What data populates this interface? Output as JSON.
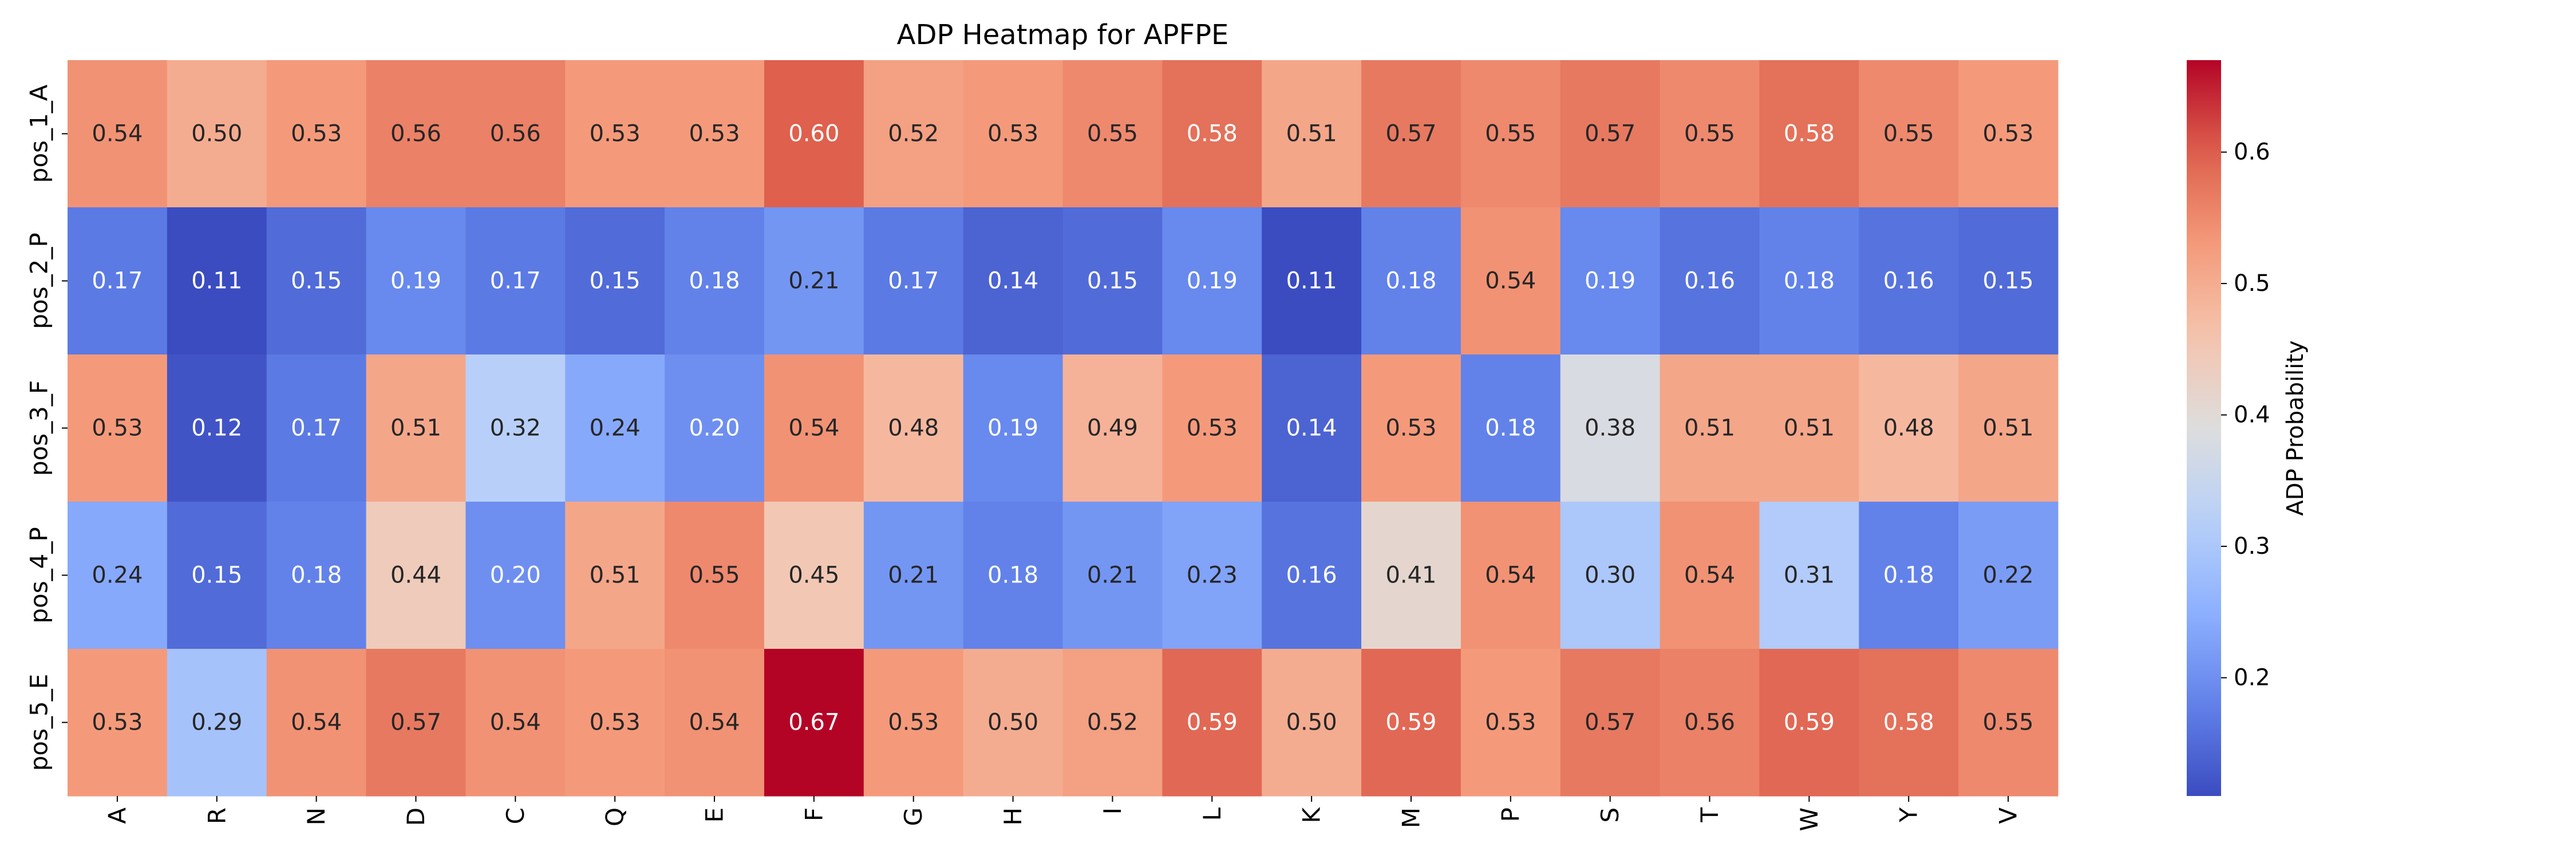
{
  "chart_data": {
    "type": "heatmap",
    "title": "ADP Heatmap for APFPE",
    "xlabel": "",
    "ylabel": "",
    "x_categories": [
      "A",
      "R",
      "N",
      "D",
      "C",
      "Q",
      "E",
      "F",
      "G",
      "H",
      "I",
      "L",
      "K",
      "M",
      "P",
      "S",
      "T",
      "W",
      "Y",
      "V"
    ],
    "y_categories": [
      "pos_1_A",
      "pos_2_P",
      "pos_3_F",
      "pos_4_P",
      "pos_5_E"
    ],
    "values": [
      [
        0.54,
        0.5,
        0.53,
        0.56,
        0.56,
        0.53,
        0.53,
        0.6,
        0.52,
        0.53,
        0.55,
        0.58,
        0.51,
        0.57,
        0.55,
        0.57,
        0.55,
        0.58,
        0.55,
        0.53
      ],
      [
        0.17,
        0.11,
        0.15,
        0.19,
        0.17,
        0.15,
        0.18,
        0.21,
        0.17,
        0.14,
        0.15,
        0.19,
        0.11,
        0.18,
        0.54,
        0.19,
        0.16,
        0.18,
        0.16,
        0.15
      ],
      [
        0.53,
        0.12,
        0.17,
        0.51,
        0.32,
        0.24,
        0.2,
        0.54,
        0.48,
        0.19,
        0.49,
        0.53,
        0.14,
        0.53,
        0.18,
        0.38,
        0.51,
        0.51,
        0.48,
        0.51
      ],
      [
        0.24,
        0.15,
        0.18,
        0.44,
        0.2,
        0.51,
        0.55,
        0.45,
        0.21,
        0.18,
        0.21,
        0.23,
        0.16,
        0.41,
        0.54,
        0.3,
        0.54,
        0.31,
        0.18,
        0.22
      ],
      [
        0.53,
        0.29,
        0.54,
        0.57,
        0.54,
        0.53,
        0.54,
        0.67,
        0.53,
        0.5,
        0.52,
        0.59,
        0.5,
        0.59,
        0.53,
        0.57,
        0.56,
        0.59,
        0.58,
        0.55
      ]
    ],
    "annotations_format": "2 decimals",
    "colormap": "coolwarm",
    "colorbar": {
      "label": "ADP Probability",
      "range": [
        0.11,
        0.67
      ],
      "ticks": [
        0.2,
        0.3,
        0.4,
        0.5,
        0.6
      ],
      "tick_labels": [
        "0.2",
        "0.3",
        "0.4",
        "0.5",
        "0.6"
      ]
    },
    "grid": false,
    "legend": "colorbar-right"
  }
}
